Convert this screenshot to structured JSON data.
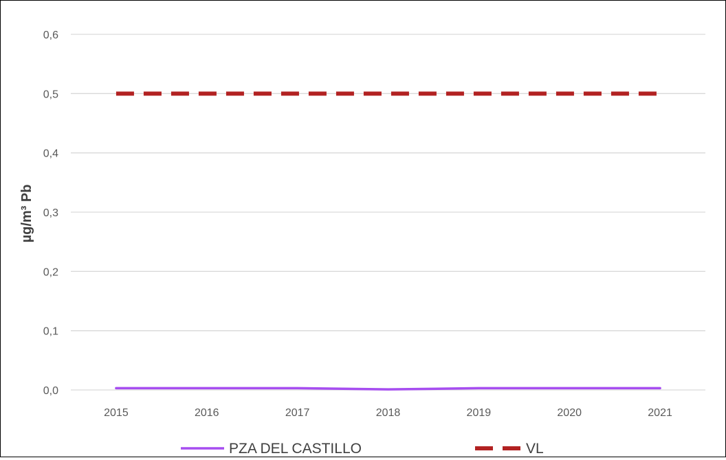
{
  "chart_data": {
    "type": "line",
    "title": "",
    "xlabel": "",
    "ylabel": "µg/m³ Pb",
    "ylim": [
      0,
      0.6
    ],
    "yticks": [
      "0,0",
      "0,1",
      "0,2",
      "0,3",
      "0,4",
      "0,5",
      "0,6"
    ],
    "x": [
      "2015",
      "2016",
      "2017",
      "2018",
      "2019",
      "2020",
      "2021"
    ],
    "grid": "horizontal",
    "legend_position": "bottom",
    "series": [
      {
        "name": "PZA DEL CASTILLO",
        "values": [
          0.003,
          0.003,
          0.003,
          0.001,
          0.003,
          0.003,
          0.003
        ],
        "color": "#A64DF0",
        "style": "solid"
      },
      {
        "name": "VL",
        "values": [
          0.5,
          0.5,
          0.5,
          0.5,
          0.5,
          0.5,
          0.5
        ],
        "color": "#B22222",
        "style": "dashed"
      }
    ]
  }
}
